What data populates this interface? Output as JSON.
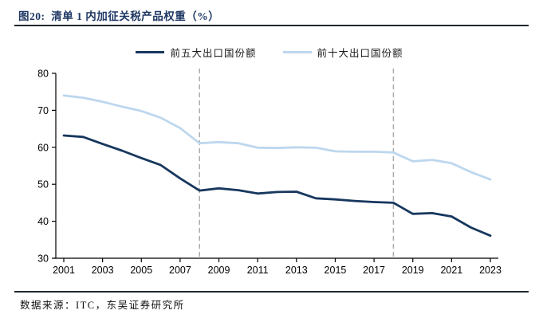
{
  "header": {
    "title": "图20:  清单 1 内加征关税产品权重（%）"
  },
  "footer": {
    "source": "数据来源：ITC，东吴证券研究所"
  },
  "colors": {
    "title_navy": "#1F3864",
    "dark_series": "#17375E",
    "light_series": "#BDD7EE",
    "axis": "#000000",
    "tick_label": "#000000",
    "dashed_line": "#ABABAB",
    "rule": "#20262e"
  },
  "chart_data": {
    "type": "line",
    "title": "清单 1 内加征关税产品权重（%）",
    "xlabel": "",
    "ylabel": "",
    "ylim": [
      30,
      80
    ],
    "yticks": [
      30,
      40,
      50,
      60,
      70,
      80
    ],
    "xticks": [
      2001,
      2003,
      2005,
      2007,
      2009,
      2011,
      2013,
      2015,
      2017,
      2019,
      2021,
      2023
    ],
    "grid": false,
    "legend_position": "top-center",
    "vlines": [
      2008,
      2018
    ],
    "x": [
      2001,
      2002,
      2003,
      2004,
      2005,
      2006,
      2007,
      2008,
      2009,
      2010,
      2011,
      2012,
      2013,
      2014,
      2015,
      2016,
      2017,
      2018,
      2019,
      2020,
      2021,
      2022,
      2023
    ],
    "series": [
      {
        "name": "前五大出口国份额",
        "color": "#17375E",
        "values": [
          63.2,
          62.8,
          60.9,
          59.1,
          57.1,
          55.2,
          51.6,
          48.3,
          48.9,
          48.4,
          47.5,
          47.9,
          48.0,
          46.2,
          45.9,
          45.5,
          45.2,
          45.0,
          42.0,
          42.2,
          41.3,
          38.3,
          36.1
        ]
      },
      {
        "name": "前十大出口国份额",
        "color": "#BDD7EE",
        "values": [
          74.0,
          73.4,
          72.3,
          71.0,
          69.8,
          68.0,
          65.2,
          61.1,
          61.4,
          61.1,
          59.9,
          59.8,
          60.0,
          59.9,
          58.9,
          58.8,
          58.8,
          58.6,
          56.2,
          56.6,
          55.7,
          53.3,
          51.3
        ]
      }
    ]
  }
}
